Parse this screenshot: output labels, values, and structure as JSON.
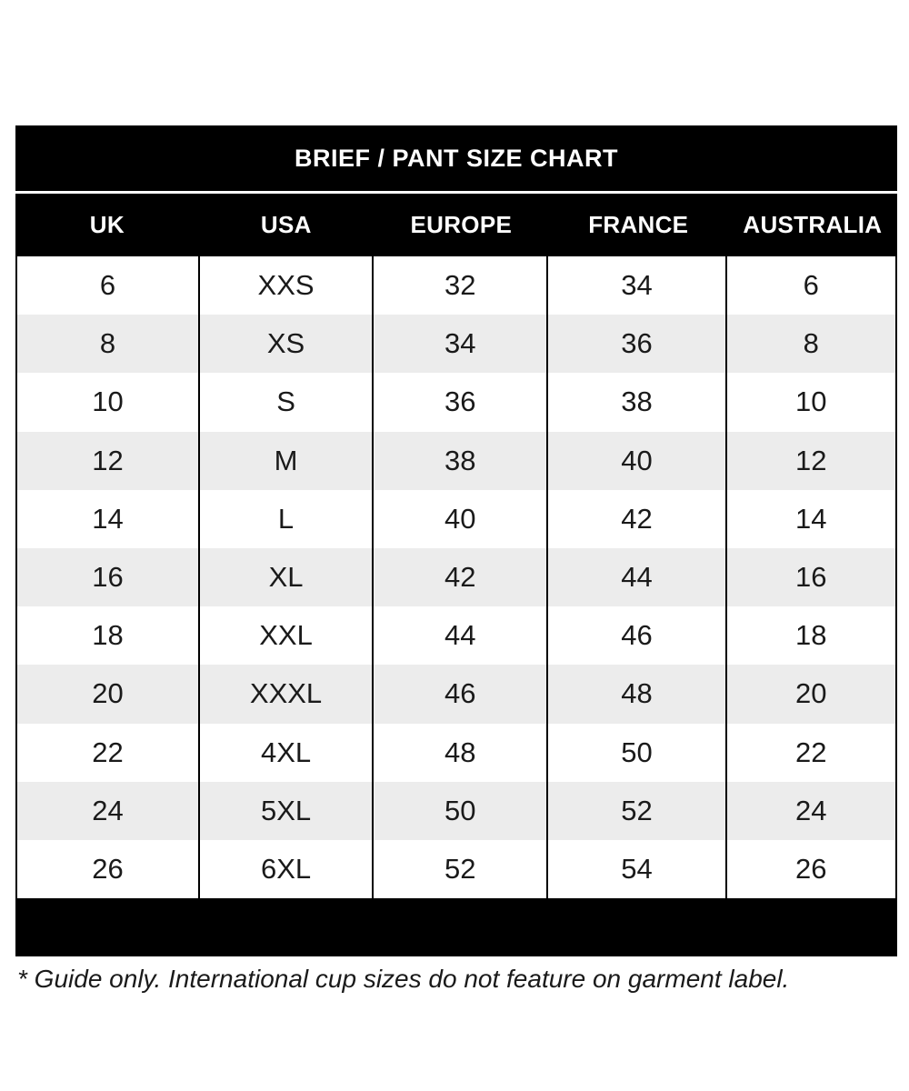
{
  "page": {
    "background": "#ffffff"
  },
  "table": {
    "title": "BRIEF / PANT SIZE CHART",
    "columns": [
      "UK",
      "USA",
      "EUROPE",
      "FRANCE",
      "AUSTRALIA"
    ],
    "rows": [
      [
        "6",
        "XXS",
        "32",
        "34",
        "6"
      ],
      [
        "8",
        "XS",
        "34",
        "36",
        "8"
      ],
      [
        "10",
        "S",
        "36",
        "38",
        "10"
      ],
      [
        "12",
        "M",
        "38",
        "40",
        "12"
      ],
      [
        "14",
        "L",
        "40",
        "42",
        "14"
      ],
      [
        "16",
        "XL",
        "42",
        "44",
        "16"
      ],
      [
        "18",
        "XXL",
        "44",
        "46",
        "18"
      ],
      [
        "20",
        "XXXL",
        "46",
        "48",
        "20"
      ],
      [
        "22",
        "4XL",
        "48",
        "50",
        "22"
      ],
      [
        "24",
        "5XL",
        "50",
        "52",
        "24"
      ],
      [
        "26",
        "6XL",
        "52",
        "54",
        "26"
      ]
    ],
    "colors": {
      "header_bg": "#000000",
      "header_text": "#ffffff",
      "row_bg": "#ffffff",
      "row_alt_bg": "#ececec",
      "body_text": "#1a1a1a",
      "border": "#000000"
    }
  },
  "footnote": "* Guide only. International cup sizes do not feature on garment label.",
  "chart_data": {
    "type": "table",
    "title": "BRIEF / PANT SIZE CHART",
    "columns": [
      "UK",
      "USA",
      "EUROPE",
      "FRANCE",
      "AUSTRALIA"
    ],
    "rows": [
      [
        "6",
        "XXS",
        "32",
        "34",
        "6"
      ],
      [
        "8",
        "XS",
        "34",
        "36",
        "8"
      ],
      [
        "10",
        "S",
        "36",
        "38",
        "10"
      ],
      [
        "12",
        "M",
        "38",
        "40",
        "12"
      ],
      [
        "14",
        "L",
        "40",
        "42",
        "14"
      ],
      [
        "16",
        "XL",
        "42",
        "44",
        "16"
      ],
      [
        "18",
        "XXL",
        "44",
        "46",
        "18"
      ],
      [
        "20",
        "XXXL",
        "46",
        "48",
        "20"
      ],
      [
        "22",
        "4XL",
        "48",
        "50",
        "22"
      ],
      [
        "24",
        "5XL",
        "50",
        "52",
        "24"
      ],
      [
        "26",
        "6XL",
        "52",
        "54",
        "26"
      ]
    ],
    "layout_hints": {
      "title_position": "top-black-bar",
      "header_style": "white-on-black",
      "zebra_striping": "even-rows-gray",
      "column_dividers": "vertical-black-lines",
      "footnote": "* Guide only. International cup sizes do not feature on garment label."
    }
  }
}
